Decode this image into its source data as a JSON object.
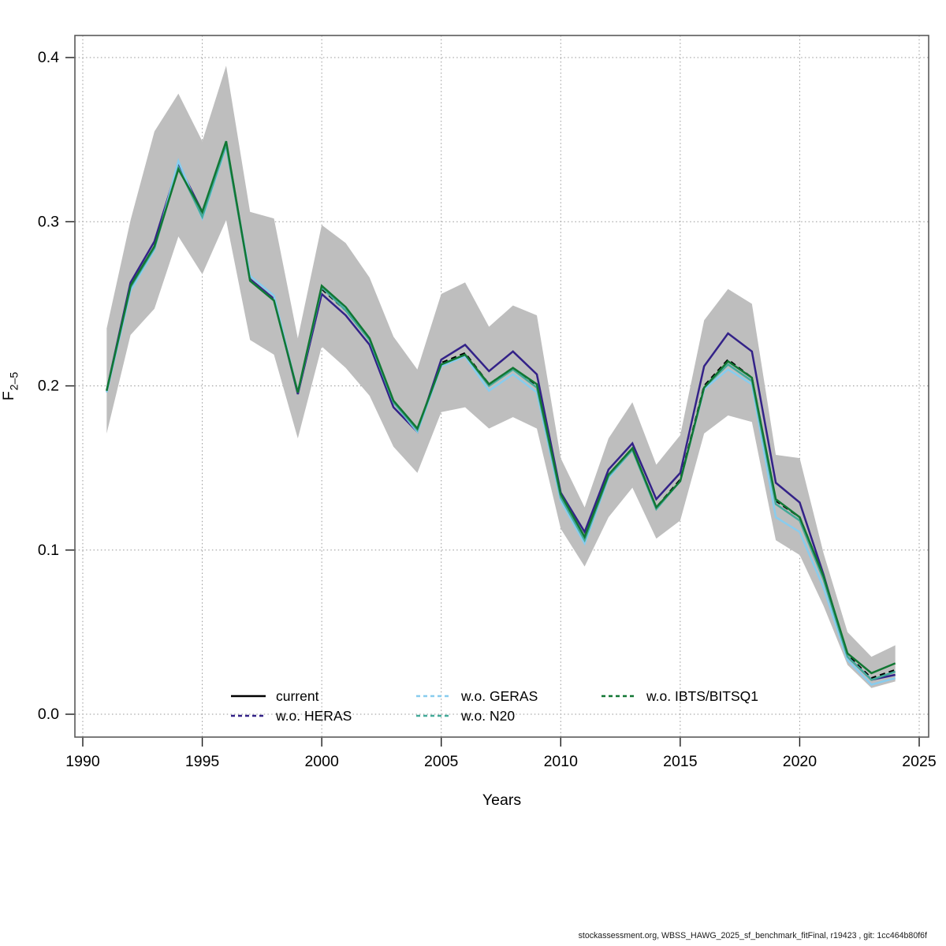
{
  "footer": {
    "text": "stockassessment.org, WBSS_HAWG_2025_sf_benchmark_fitFinal, r19423 , git: 1cc464b80f6f"
  },
  "chart_data": {
    "type": "line",
    "title": "",
    "xlabel": "Years",
    "ylabel": {
      "base": "F",
      "sub": "2–5"
    },
    "xlim": [
      1990,
      2025
    ],
    "ylim": [
      0.0,
      0.4
    ],
    "x_ticks": [
      1990,
      1995,
      2000,
      2005,
      2010,
      2015,
      2020,
      2025
    ],
    "y_ticks": [
      0.0,
      0.1,
      0.2,
      0.3,
      0.4
    ],
    "grid": "dotted",
    "grid_color": "#969696",
    "box_color": "#5A5A5A",
    "years": [
      1991,
      1992,
      1993,
      1994,
      1995,
      1996,
      1997,
      1998,
      1999,
      2000,
      2001,
      2002,
      2003,
      2004,
      2005,
      2006,
      2007,
      2008,
      2009,
      2010,
      2011,
      2012,
      2013,
      2014,
      2015,
      2016,
      2017,
      2018,
      2019,
      2020,
      2021,
      2022,
      2023,
      2024
    ],
    "confidence_band": {
      "name": "current-95pct-interval",
      "color": "#BEBEBE",
      "lower": [
        0.171,
        0.231,
        0.247,
        0.291,
        0.268,
        0.301,
        0.228,
        0.219,
        0.168,
        0.224,
        0.211,
        0.194,
        0.163,
        0.147,
        0.184,
        0.187,
        0.174,
        0.181,
        0.174,
        0.113,
        0.09,
        0.12,
        0.138,
        0.107,
        0.118,
        0.171,
        0.182,
        0.178,
        0.106,
        0.097,
        0.066,
        0.03,
        0.016,
        0.02
      ],
      "upper": [
        0.235,
        0.301,
        0.355,
        0.378,
        0.349,
        0.395,
        0.306,
        0.302,
        0.229,
        0.298,
        0.287,
        0.266,
        0.23,
        0.21,
        0.256,
        0.263,
        0.236,
        0.249,
        0.243,
        0.156,
        0.126,
        0.168,
        0.19,
        0.152,
        0.17,
        0.24,
        0.259,
        0.25,
        0.158,
        0.156,
        0.098,
        0.05,
        0.035,
        0.042
      ]
    },
    "series": [
      {
        "name": "current",
        "color": "#000000",
        "legend_dash": "none",
        "plot_dash": "7 5",
        "width": 2.3,
        "values": [
          0.197,
          0.261,
          0.285,
          0.334,
          0.305,
          0.348,
          0.265,
          0.253,
          0.196,
          0.259,
          0.246,
          0.228,
          0.19,
          0.173,
          0.214,
          0.22,
          0.201,
          0.211,
          0.2,
          0.133,
          0.107,
          0.146,
          0.162,
          0.126,
          0.143,
          0.2,
          0.216,
          0.205,
          0.13,
          0.12,
          0.084,
          0.036,
          0.022,
          0.027
        ]
      },
      {
        "name": "w.o. HERAS",
        "color": "#332288",
        "legend_dash": "5 4",
        "plot_dash": "none",
        "width": 2.5,
        "values": [
          0.197,
          0.263,
          0.288,
          0.335,
          0.306,
          0.347,
          0.265,
          0.253,
          0.195,
          0.256,
          0.243,
          0.225,
          0.187,
          0.172,
          0.216,
          0.225,
          0.209,
          0.221,
          0.207,
          0.135,
          0.111,
          0.149,
          0.165,
          0.131,
          0.147,
          0.212,
          0.232,
          0.221,
          0.141,
          0.129,
          0.085,
          0.035,
          0.021,
          0.024
        ]
      },
      {
        "name": "w.o. GERAS",
        "color": "#88CCEE",
        "legend_dash": "5 4",
        "plot_dash": "none",
        "width": 2.5,
        "values": [
          0.196,
          0.258,
          0.283,
          0.337,
          0.302,
          0.346,
          0.267,
          0.255,
          0.196,
          0.26,
          0.247,
          0.228,
          0.19,
          0.172,
          0.212,
          0.218,
          0.197,
          0.207,
          0.196,
          0.13,
          0.104,
          0.144,
          0.161,
          0.125,
          0.142,
          0.198,
          0.21,
          0.201,
          0.12,
          0.111,
          0.077,
          0.033,
          0.018,
          0.022
        ]
      },
      {
        "name": "w.o. N20",
        "color": "#44AA99",
        "legend_dash": "5 4",
        "plot_dash": "none",
        "width": 2.5,
        "values": [
          0.197,
          0.26,
          0.284,
          0.333,
          0.303,
          0.347,
          0.264,
          0.252,
          0.196,
          0.26,
          0.246,
          0.228,
          0.19,
          0.173,
          0.213,
          0.219,
          0.2,
          0.21,
          0.199,
          0.132,
          0.106,
          0.145,
          0.161,
          0.125,
          0.142,
          0.199,
          0.213,
          0.203,
          0.128,
          0.118,
          0.082,
          0.035,
          0.021,
          0.026
        ]
      },
      {
        "name": "w.o. IBTS/BITSQ1",
        "color": "#117733",
        "legend_dash": "5 4",
        "plot_dash": "none",
        "width": 2.5,
        "values": [
          0.197,
          0.261,
          0.285,
          0.332,
          0.306,
          0.349,
          0.264,
          0.252,
          0.196,
          0.261,
          0.248,
          0.229,
          0.191,
          0.174,
          0.213,
          0.219,
          0.201,
          0.211,
          0.201,
          0.134,
          0.108,
          0.146,
          0.162,
          0.126,
          0.142,
          0.199,
          0.215,
          0.205,
          0.131,
          0.12,
          0.084,
          0.037,
          0.025,
          0.031
        ]
      }
    ],
    "legend": {
      "position": "bottom-center-inside",
      "items": [
        {
          "label": "current",
          "series": 0,
          "col": 0,
          "row": 0
        },
        {
          "label": "w.o. HERAS",
          "series": 1,
          "col": 0,
          "row": 1
        },
        {
          "label": "w.o. GERAS",
          "series": 2,
          "col": 1,
          "row": 0
        },
        {
          "label": "w.o. N20",
          "series": 3,
          "col": 1,
          "row": 1
        },
        {
          "label": "w.o. IBTS/BITSQ1",
          "series": 4,
          "col": 2,
          "row": 0
        }
      ]
    }
  }
}
